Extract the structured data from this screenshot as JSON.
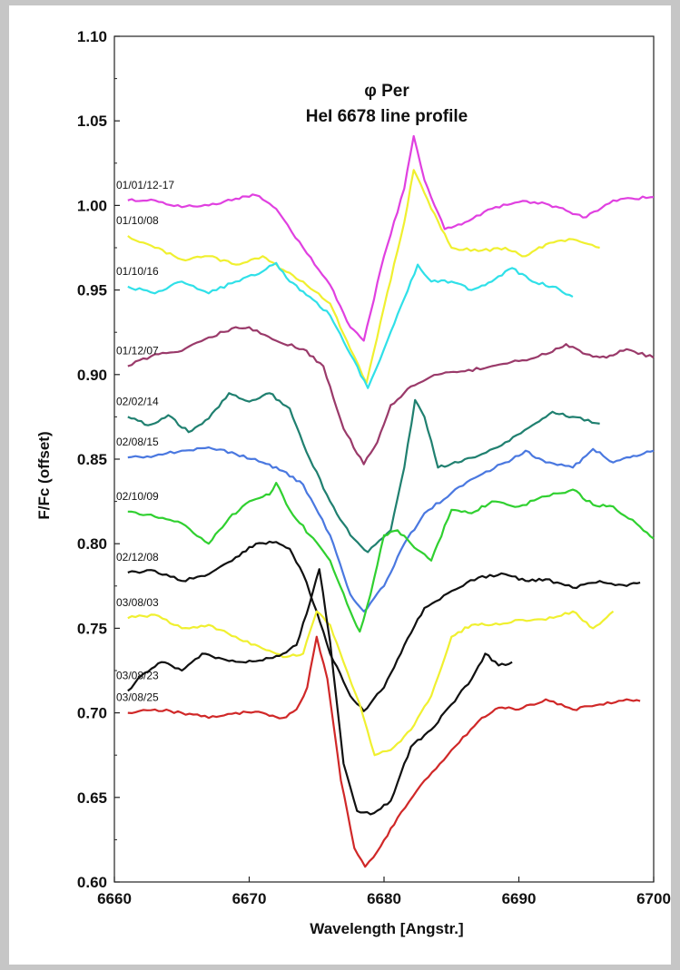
{
  "chart_data": {
    "type": "line",
    "title": "φ Per",
    "subtitle": "HeI 6678 line profile",
    "xlabel": "Wavelength [Angstr.]",
    "ylabel": "F/Fc (offset)",
    "xlim": [
      6660,
      6700
    ],
    "ylim": [
      0.6,
      1.1
    ],
    "xticks": [
      "6660",
      "6670",
      "6680",
      "6690",
      "6700"
    ],
    "yticks": [
      "0.60",
      "0.65",
      "0.70",
      "0.75",
      "0.80",
      "0.85",
      "0.90",
      "0.95",
      "1.00",
      "1.05",
      "1.10"
    ],
    "grid": false,
    "legend": "none",
    "series": [
      {
        "name": "01/01/12-17",
        "color": "#e040e0",
        "x": [
          6661,
          6663,
          6665,
          6667,
          6669,
          6670.5,
          6672,
          6674,
          6676,
          6677.5,
          6678.5,
          6680,
          6681.5,
          6682.2,
          6683,
          6684.5,
          6686,
          6688,
          6690,
          6692,
          6693.5,
          6695,
          6697,
          6700
        ],
        "y": [
          1.003,
          1.003,
          0.999,
          1.0,
          1.004,
          1.006,
          0.998,
          0.975,
          0.953,
          0.928,
          0.92,
          0.97,
          1.01,
          1.041,
          1.015,
          0.986,
          0.99,
          0.998,
          1.002,
          1.001,
          0.997,
          0.993,
          1.003,
          1.005
        ]
      },
      {
        "name": "01/10/08",
        "color": "#f0f030",
        "x": [
          6661,
          6663,
          6665,
          6667,
          6669,
          6671,
          6672.5,
          6674,
          6676,
          6677.5,
          6678.7,
          6680,
          6681.5,
          6682.2,
          6683.5,
          6685,
          6687,
          6689,
          6690.5,
          6692,
          6694,
          6696
        ],
        "y": [
          0.982,
          0.975,
          0.968,
          0.97,
          0.965,
          0.97,
          0.962,
          0.955,
          0.942,
          0.915,
          0.895,
          0.94,
          0.99,
          1.021,
          0.998,
          0.975,
          0.973,
          0.975,
          0.97,
          0.977,
          0.98,
          0.975
        ]
      },
      {
        "name": "01/10/16",
        "color": "#30e0e8",
        "x": [
          6661,
          6663,
          6665,
          6667,
          6669,
          6671,
          6672,
          6673,
          6674.5,
          6676,
          6677.5,
          6678.8,
          6680,
          6681.5,
          6682.5,
          6683.5,
          6685,
          6686.5,
          6688,
          6689.5,
          6691,
          6692.5,
          6694
        ],
        "y": [
          0.952,
          0.948,
          0.955,
          0.948,
          0.955,
          0.961,
          0.966,
          0.955,
          0.946,
          0.935,
          0.912,
          0.892,
          0.915,
          0.945,
          0.965,
          0.955,
          0.955,
          0.95,
          0.955,
          0.963,
          0.955,
          0.952,
          0.946
        ]
      },
      {
        "name": "01/12/07",
        "color": "#9a3a6a",
        "x": [
          6661,
          6663,
          6665,
          6667,
          6669,
          6670,
          6672,
          6674,
          6675.5,
          6677,
          6678.5,
          6679.5,
          6680.5,
          6682,
          6684,
          6686,
          6688,
          6690,
          6692,
          6693.5,
          6695,
          6696.5,
          6698,
          6700
        ],
        "y": [
          0.905,
          0.912,
          0.914,
          0.922,
          0.928,
          0.928,
          0.92,
          0.915,
          0.905,
          0.868,
          0.847,
          0.86,
          0.882,
          0.893,
          0.9,
          0.902,
          0.905,
          0.908,
          0.912,
          0.918,
          0.912,
          0.91,
          0.915,
          0.91
        ]
      },
      {
        "name": "02/02/14",
        "color": "#208070",
        "x": [
          6661,
          6662.5,
          6664,
          6665.5,
          6667,
          6668.5,
          6670,
          6671.5,
          6673,
          6674.5,
          6676,
          6677.5,
          6678.8,
          6680.5,
          6681.5,
          6682.3,
          6683,
          6684,
          6685.5,
          6687,
          6689,
          6691,
          6692.5,
          6694,
          6696
        ],
        "y": [
          0.875,
          0.87,
          0.876,
          0.866,
          0.874,
          0.889,
          0.884,
          0.889,
          0.88,
          0.85,
          0.825,
          0.805,
          0.795,
          0.808,
          0.845,
          0.885,
          0.875,
          0.845,
          0.848,
          0.852,
          0.86,
          0.87,
          0.878,
          0.875,
          0.871
        ]
      },
      {
        "name": "02/08/15",
        "color": "#4a78e0",
        "x": [
          6661,
          6663,
          6665,
          6667,
          6669,
          6671,
          6672.5,
          6674,
          6676,
          6677.5,
          6678.5,
          6680,
          6681.5,
          6683,
          6685,
          6687,
          6689,
          6690.5,
          6692,
          6694,
          6695.5,
          6697,
          6698.5,
          6700
        ],
        "y": [
          0.851,
          0.852,
          0.855,
          0.857,
          0.853,
          0.848,
          0.843,
          0.835,
          0.805,
          0.77,
          0.76,
          0.775,
          0.8,
          0.818,
          0.83,
          0.84,
          0.848,
          0.855,
          0.848,
          0.845,
          0.856,
          0.848,
          0.852,
          0.855
        ]
      },
      {
        "name": "02/10/09",
        "color": "#30d030",
        "x": [
          6661,
          6663,
          6665,
          6667,
          6668.5,
          6670,
          6671.5,
          6672,
          6673,
          6674.5,
          6676,
          6677.5,
          6678.2,
          6679,
          6680,
          6681,
          6682,
          6683.5,
          6685,
          6686.5,
          6688,
          6690,
          6692,
          6694,
          6695.5,
          6697,
          6699,
          6700
        ],
        "y": [
          0.819,
          0.816,
          0.812,
          0.8,
          0.815,
          0.825,
          0.829,
          0.836,
          0.82,
          0.805,
          0.79,
          0.76,
          0.748,
          0.77,
          0.805,
          0.808,
          0.8,
          0.79,
          0.82,
          0.818,
          0.825,
          0.822,
          0.828,
          0.832,
          0.823,
          0.822,
          0.81,
          0.803
        ]
      },
      {
        "name": "02/12/08",
        "color": "#111111",
        "x": [
          6661,
          6663,
          6665,
          6667,
          6669,
          6670.5,
          6672,
          6673,
          6674,
          6675,
          6676,
          6677.5,
          6678.5,
          6680,
          6681.5,
          6683,
          6685,
          6687,
          6689,
          6690.5,
          6692,
          6694,
          6696,
          6698,
          6699
        ],
        "y": [
          0.783,
          0.784,
          0.778,
          0.782,
          0.792,
          0.8,
          0.801,
          0.797,
          0.782,
          0.76,
          0.735,
          0.71,
          0.701,
          0.715,
          0.74,
          0.762,
          0.772,
          0.78,
          0.782,
          0.778,
          0.779,
          0.774,
          0.778,
          0.775,
          0.777
        ]
      },
      {
        "name": "03/08/03",
        "color": "#f0f030",
        "x": [
          6661,
          6663,
          6665,
          6667,
          6669,
          6671,
          6672.5,
          6674,
          6675,
          6676,
          6677,
          6678.2,
          6679.3,
          6680.5,
          6682,
          6683.5,
          6685,
          6686.5,
          6688,
          6690,
          6692,
          6694,
          6695.5,
          6697
        ],
        "y": [
          0.756,
          0.758,
          0.75,
          0.752,
          0.745,
          0.738,
          0.733,
          0.735,
          0.76,
          0.752,
          0.73,
          0.705,
          0.675,
          0.678,
          0.69,
          0.71,
          0.745,
          0.752,
          0.752,
          0.755,
          0.755,
          0.76,
          0.75,
          0.76
        ]
      },
      {
        "name": "03/08/23",
        "color": "#111111",
        "x": [
          6661,
          6662,
          6663.5,
          6665,
          6666.5,
          6668,
          6669.5,
          6671,
          6672.5,
          6673.5,
          6674.5,
          6675.2,
          6676,
          6677,
          6678,
          6679,
          6680.5,
          6682,
          6683.5,
          6685,
          6686.5,
          6687.5,
          6688.5,
          6689.5
        ],
        "y": [
          0.713,
          0.722,
          0.73,
          0.725,
          0.735,
          0.732,
          0.73,
          0.731,
          0.735,
          0.74,
          0.765,
          0.785,
          0.742,
          0.67,
          0.642,
          0.64,
          0.648,
          0.68,
          0.69,
          0.705,
          0.72,
          0.735,
          0.728,
          0.73
        ]
      },
      {
        "name": "03/08/25",
        "color": "#d02828",
        "x": [
          6661,
          6663,
          6665,
          6667,
          6669,
          6671,
          6672.5,
          6673.5,
          6674.3,
          6675,
          6675.8,
          6676.8,
          6677.8,
          6678.6,
          6679.5,
          6681,
          6683,
          6685,
          6687,
          6688.5,
          6690,
          6692,
          6694,
          6696,
          6698,
          6699
        ],
        "y": [
          0.7,
          0.702,
          0.7,
          0.697,
          0.7,
          0.7,
          0.697,
          0.702,
          0.715,
          0.745,
          0.72,
          0.66,
          0.62,
          0.609,
          0.618,
          0.638,
          0.66,
          0.678,
          0.695,
          0.703,
          0.702,
          0.708,
          0.702,
          0.705,
          0.708,
          0.707
        ]
      }
    ]
  }
}
